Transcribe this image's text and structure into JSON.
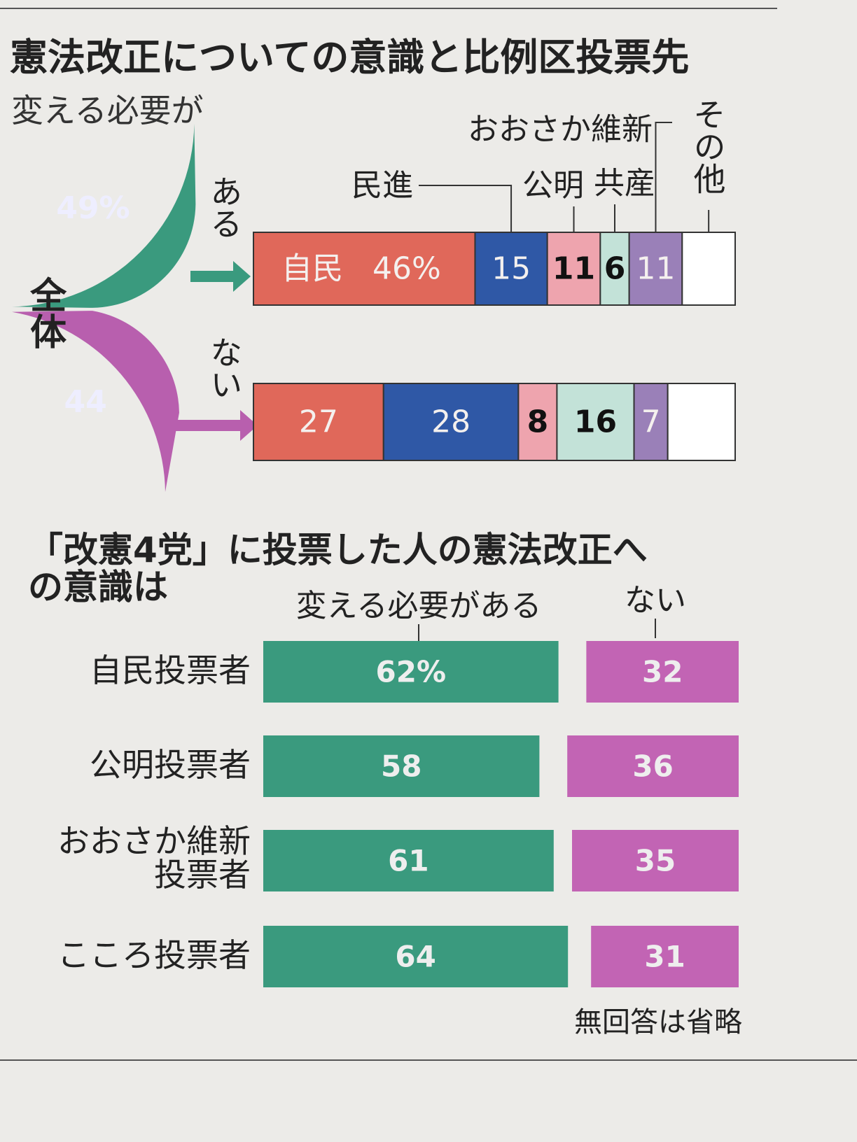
{
  "chart_data": [
    {
      "type": "fan-stacked-bar",
      "title": "憲法改正についての意識と比例区投票先",
      "subtitle": "変える必要が",
      "categories": [
        "ある",
        "ない"
      ],
      "fan": {
        "label": "全体",
        "values": [
          49,
          44
        ],
        "value_labels": [
          "49%",
          "44"
        ],
        "colors": [
          "#3a9a7e",
          "#b85fae"
        ]
      },
      "series": [
        {
          "name": "自民",
          "color": "#e0685a",
          "values": [
            46,
            27
          ],
          "value_labels": [
            "46%",
            "27"
          ]
        },
        {
          "name": "民進",
          "color": "#2f58a6",
          "values": [
            15,
            28
          ]
        },
        {
          "name": "公明",
          "color": "#eea4ae",
          "values": [
            11,
            8
          ]
        },
        {
          "name": "共産",
          "color": "#c3e2d8",
          "values": [
            6,
            16
          ]
        },
        {
          "name": "おおさか維新",
          "color": "#9a80b8",
          "values": [
            11,
            7
          ]
        },
        {
          "name": "その他",
          "color": "#ffffff",
          "values": [
            11,
            14
          ],
          "value_labels": [
            null,
            null
          ]
        }
      ]
    },
    {
      "type": "paired-bar",
      "title": "「改憲4党」に投票した人の憲法改正への意識は",
      "categories": [
        "自民投票者",
        "公明投票者",
        "おおさか維新投票者",
        "こころ投票者"
      ],
      "series": [
        {
          "name": "変える必要がある",
          "color": "#3a9a7e",
          "values": [
            62,
            58,
            61,
            64
          ],
          "value_labels": [
            "62%",
            "58",
            "61",
            "64"
          ]
        },
        {
          "name": "ない",
          "color": "#c264b4",
          "values": [
            32,
            36,
            35,
            31
          ]
        }
      ],
      "note": "無回答は省略"
    }
  ]
}
